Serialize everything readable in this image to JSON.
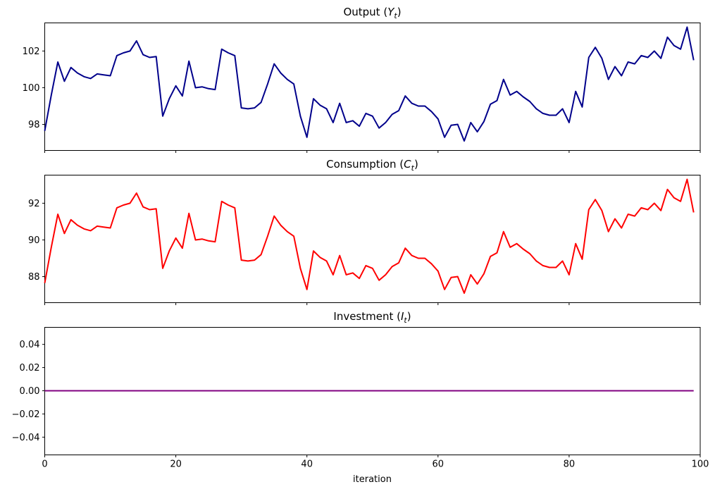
{
  "figure": {
    "xlabel": "iteration",
    "x_ticks": [
      0,
      20,
      40,
      60,
      80,
      100
    ],
    "background_color": "#ffffff",
    "spine_color": "#000000",
    "n_points_per_series": 100,
    "grid": false,
    "legend": false
  },
  "chart_data": [
    {
      "name": "output",
      "type": "line",
      "title": {
        "pre": "Output (",
        "var": "Y",
        "sub": "t",
        "post": ")"
      },
      "title_plain": "Output (Yt)",
      "color": "#00008b",
      "x_start": 0,
      "x_step": 1,
      "xlim": [
        0,
        100
      ],
      "ylim": [
        96.6,
        103.55
      ],
      "y_tick_values": [
        98,
        100,
        102
      ],
      "y_tick_labels": [
        "98",
        "100",
        "102"
      ],
      "show_x_tick_labels": false,
      "values": [
        97.65,
        99.6,
        101.4,
        100.35,
        101.1,
        100.8,
        100.6,
        100.5,
        100.75,
        100.7,
        100.65,
        101.75,
        101.9,
        102.0,
        102.55,
        101.8,
        101.65,
        101.7,
        98.45,
        99.4,
        100.1,
        99.55,
        101.45,
        100.0,
        100.05,
        99.95,
        99.9,
        102.1,
        101.9,
        101.75,
        98.9,
        98.85,
        98.9,
        99.2,
        100.2,
        101.3,
        100.8,
        100.45,
        100.2,
        98.45,
        97.3,
        99.4,
        99.05,
        98.85,
        98.1,
        99.15,
        98.1,
        98.2,
        97.9,
        98.6,
        98.45,
        97.8,
        98.1,
        98.55,
        98.75,
        99.55,
        99.15,
        99.0,
        99.0,
        98.7,
        98.3,
        97.3,
        97.95,
        98.0,
        97.1,
        98.1,
        97.6,
        98.15,
        99.1,
        99.3,
        100.45,
        99.6,
        99.8,
        99.5,
        99.25,
        98.85,
        98.6,
        98.5,
        98.5,
        98.85,
        98.1,
        99.8,
        98.95,
        101.65,
        102.2,
        101.6,
        100.45,
        101.15,
        100.65,
        101.4,
        101.3,
        101.75,
        101.65,
        102.0,
        101.6,
        102.75,
        102.3,
        102.1,
        103.3,
        101.5
      ]
    },
    {
      "name": "consumption",
      "type": "line",
      "title": {
        "pre": "Consumption (",
        "var": "C",
        "sub": "t",
        "post": ")"
      },
      "title_plain": "Consumption (Ct)",
      "color": "#ff0000",
      "x_start": 0,
      "x_step": 1,
      "xlim": [
        0,
        100
      ],
      "ylim": [
        86.6,
        93.55
      ],
      "y_tick_values": [
        88,
        90,
        92
      ],
      "y_tick_labels": [
        "88",
        "90",
        "92"
      ],
      "show_x_tick_labels": false,
      "values": [
        87.65,
        89.6,
        91.4,
        90.35,
        91.1,
        90.8,
        90.6,
        90.5,
        90.75,
        90.7,
        90.65,
        91.75,
        91.9,
        92.0,
        92.55,
        91.8,
        91.65,
        91.7,
        88.45,
        89.4,
        90.1,
        89.55,
        91.45,
        90.0,
        90.05,
        89.95,
        89.9,
        92.1,
        91.9,
        91.75,
        88.9,
        88.85,
        88.9,
        89.2,
        90.2,
        91.3,
        90.8,
        90.45,
        90.2,
        88.45,
        87.3,
        89.4,
        89.05,
        88.85,
        88.1,
        89.15,
        88.1,
        88.2,
        87.9,
        88.6,
        88.45,
        87.8,
        88.1,
        88.55,
        88.75,
        89.55,
        89.15,
        89.0,
        89.0,
        88.7,
        88.3,
        87.3,
        87.95,
        88.0,
        87.1,
        88.1,
        87.6,
        88.15,
        89.1,
        89.3,
        90.45,
        89.6,
        89.8,
        89.5,
        89.25,
        88.85,
        88.6,
        88.5,
        88.5,
        88.85,
        88.1,
        89.8,
        88.95,
        91.65,
        92.2,
        91.6,
        90.45,
        91.15,
        90.65,
        91.4,
        91.3,
        91.75,
        91.65,
        92.0,
        91.6,
        92.75,
        92.3,
        92.1,
        93.3,
        91.5
      ]
    },
    {
      "name": "investment",
      "type": "line",
      "title": {
        "pre": "Investment (",
        "var": "I",
        "sub": "t",
        "post": ")"
      },
      "title_plain": "Investment (It)",
      "color": "#800080",
      "x_start": 0,
      "x_step": 1,
      "xlim": [
        0,
        100
      ],
      "ylim": [
        -0.055,
        0.055
      ],
      "y_tick_values": [
        0.04,
        0.02,
        0.0,
        -0.02,
        -0.04
      ],
      "y_tick_labels": [
        "0.04",
        "0.02",
        "0.00",
        "−0.02",
        "−0.04"
      ],
      "show_x_tick_labels": true,
      "values": [
        0,
        0,
        0,
        0,
        0,
        0,
        0,
        0,
        0,
        0,
        0,
        0,
        0,
        0,
        0,
        0,
        0,
        0,
        0,
        0,
        0,
        0,
        0,
        0,
        0,
        0,
        0,
        0,
        0,
        0,
        0,
        0,
        0,
        0,
        0,
        0,
        0,
        0,
        0,
        0,
        0,
        0,
        0,
        0,
        0,
        0,
        0,
        0,
        0,
        0,
        0,
        0,
        0,
        0,
        0,
        0,
        0,
        0,
        0,
        0,
        0,
        0,
        0,
        0,
        0,
        0,
        0,
        0,
        0,
        0,
        0,
        0,
        0,
        0,
        0,
        0,
        0,
        0,
        0,
        0,
        0,
        0,
        0,
        0,
        0,
        0,
        0,
        0,
        0,
        0,
        0,
        0,
        0,
        0,
        0,
        0,
        0,
        0,
        0,
        0
      ]
    }
  ]
}
